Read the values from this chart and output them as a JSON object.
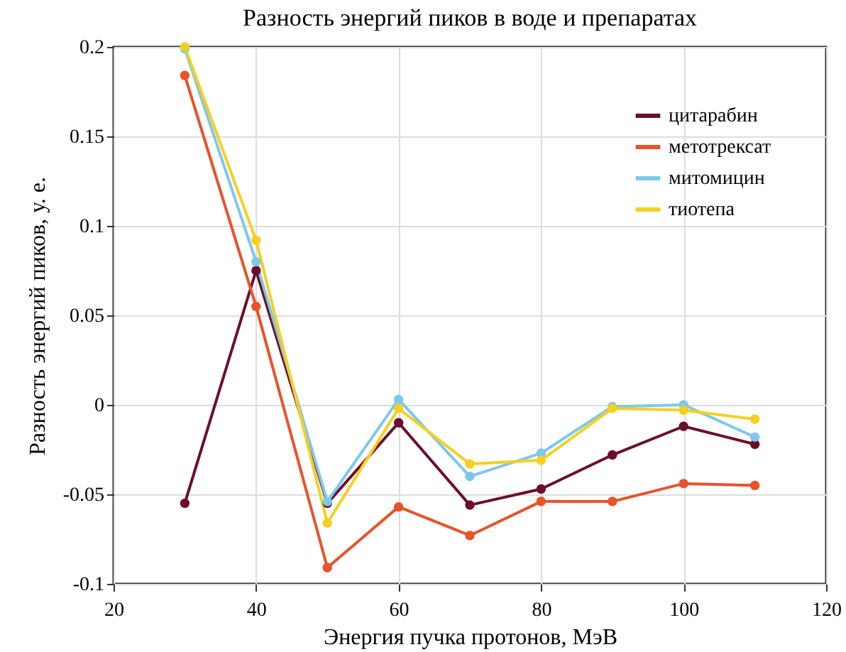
{
  "chart_data": {
    "type": "line",
    "title": "Разность энергий пиков в воде и препаратах",
    "xlabel": "Энергия пучка протонов, МэВ",
    "ylabel": "Разность энергий пиков, у. е.",
    "x": [
      30,
      40,
      50,
      60,
      70,
      80,
      90,
      100,
      110
    ],
    "series": [
      {
        "name": "цитарабин",
        "color": "#6b0f2a",
        "values": [
          -0.055,
          0.075,
          -0.055,
          -0.01,
          -0.056,
          -0.047,
          -0.028,
          -0.012,
          -0.022
        ]
      },
      {
        "name": "метотрексат",
        "color": "#e8532a",
        "values": [
          0.184,
          0.055,
          -0.091,
          -0.057,
          -0.073,
          -0.054,
          -0.054,
          -0.044,
          -0.045
        ]
      },
      {
        "name": "митомицин",
        "color": "#7ec8ec",
        "values": [
          0.199,
          0.08,
          -0.054,
          0.003,
          -0.04,
          -0.027,
          -0.001,
          0.0,
          -0.018
        ]
      },
      {
        "name": "тиотепа",
        "color": "#f5d020",
        "values": [
          0.2,
          0.092,
          -0.066,
          -0.002,
          -0.033,
          -0.031,
          -0.002,
          -0.003,
          -0.008
        ]
      }
    ],
    "xlim": [
      20,
      120
    ],
    "xticks": [
      20,
      40,
      60,
      80,
      100,
      120
    ],
    "ylim": [
      -0.1,
      0.2
    ],
    "yticks": [
      -0.1,
      -0.05,
      0,
      0.05,
      0.1,
      0.15,
      0.2
    ],
    "grid": true,
    "legend": "top right",
    "marker": "circle",
    "line_style": "solid"
  }
}
